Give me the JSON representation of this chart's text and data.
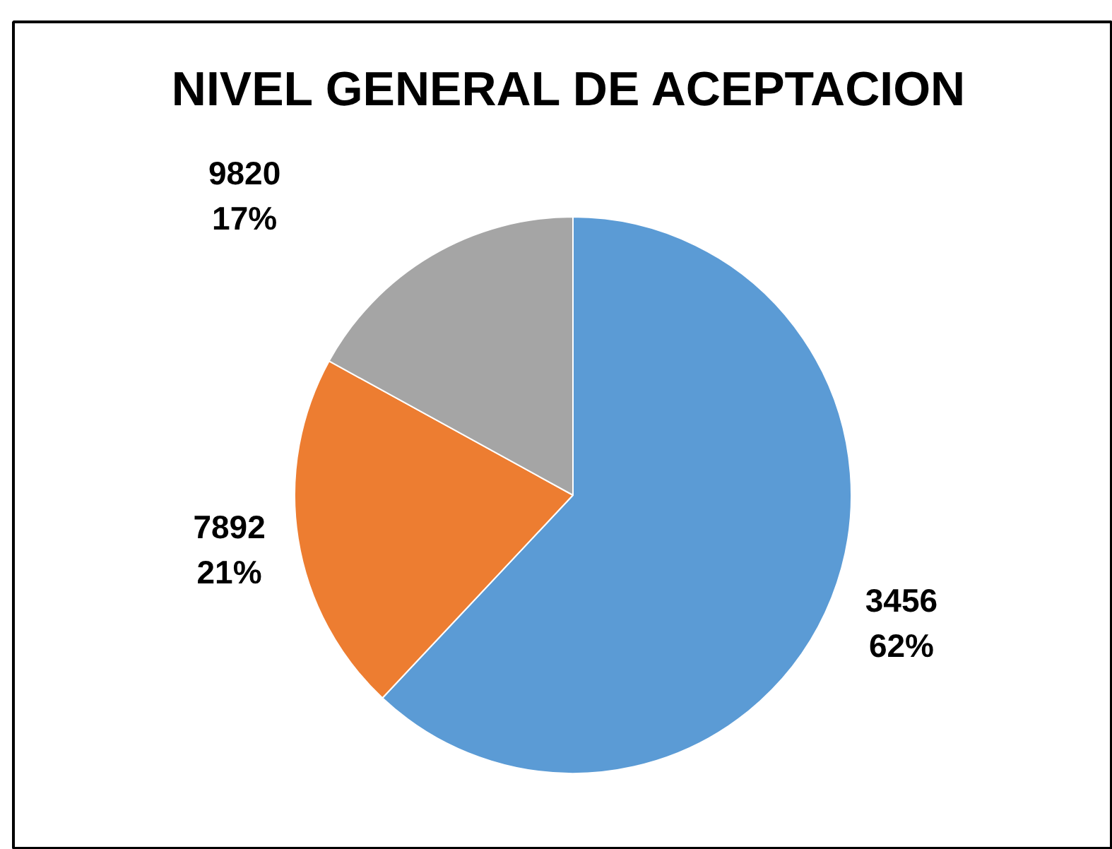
{
  "chart_data": {
    "type": "pie",
    "title": "NIVEL GENERAL DE ACEPTACION",
    "categories": [
      "3456",
      "7892",
      "9820"
    ],
    "values": [
      62,
      21,
      17
    ],
    "colors": [
      "#5b9bd5",
      "#ed7d31",
      "#a5a5a5"
    ],
    "value_labels": [
      "62%",
      "21%",
      "17%"
    ]
  }
}
